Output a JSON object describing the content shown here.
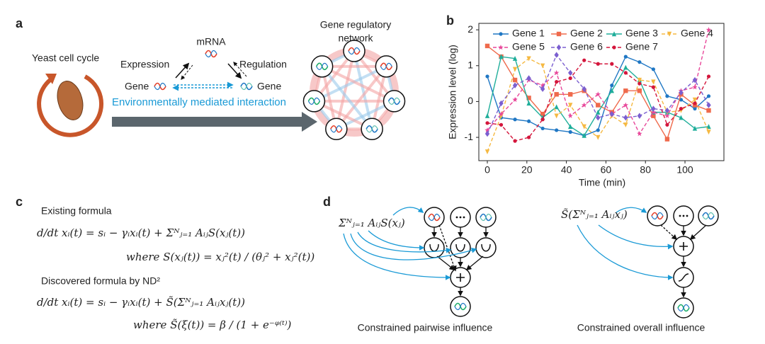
{
  "panel_a": {
    "label": "a",
    "cell_label": "Yeast cell cycle",
    "mrna": "mRNA",
    "expression": "Expression",
    "regulation": "Regulation",
    "gene_left": "Gene",
    "gene_right": "Gene",
    "interaction": "Environmentally mediated interaction",
    "network_title": [
      "Gene regulatory",
      "network"
    ]
  },
  "chart_data": {
    "type": "line",
    "label": "b",
    "xlabel": "Time (min)",
    "ylabel": "Expression level (log)",
    "x": [
      0,
      7,
      14,
      21,
      28,
      35,
      42,
      49,
      56,
      63,
      70,
      77,
      84,
      91,
      98,
      105,
      112
    ],
    "xlim": [
      -4.3,
      119.7
    ],
    "ylim": [
      -1.65,
      2.18
    ],
    "xticks": [
      0,
      20,
      40,
      60,
      80,
      100
    ],
    "yticks": [
      -1,
      0,
      1,
      2
    ],
    "series": [
      {
        "name": "Gene 1",
        "color": "#1f77c4",
        "marker": "circle",
        "dashed": false,
        "values": [
          0.7,
          -0.45,
          -0.5,
          -0.55,
          -0.75,
          -0.8,
          -0.85,
          -0.95,
          -0.8,
          0.45,
          1.25,
          1.1,
          0.9,
          0.15,
          0.05,
          -0.2,
          0.15
        ]
      },
      {
        "name": "Gene 2",
        "color": "#ef6a4c",
        "marker": "square",
        "dashed": false,
        "values": [
          1.55,
          1.25,
          0.6,
          0.1,
          -0.35,
          0.2,
          0.2,
          0.3,
          -0.1,
          -0.3,
          0.3,
          0.3,
          -0.4,
          -1.05,
          0.2,
          -0.1,
          -0.25
        ]
      },
      {
        "name": "Gene 3",
        "color": "#1fae9a",
        "marker": "triangle",
        "dashed": false,
        "values": [
          -0.4,
          1.25,
          1.2,
          -0.05,
          -0.45,
          -0.15,
          -0.7,
          -0.95,
          -0.3,
          0.3,
          0.95,
          0.6,
          -0.3,
          -0.3,
          -0.45,
          -0.75,
          -0.7
        ]
      },
      {
        "name": "Gene 4",
        "color": "#f5b942",
        "marker": "triangle-down",
        "dashed": true,
        "values": [
          -1.4,
          -0.4,
          0.9,
          1.2,
          1.0,
          -0.4,
          -0.1,
          -0.7,
          -1.0,
          -0.4,
          -0.65,
          0.6,
          0.55,
          -0.3,
          -0.25,
          0.05,
          -0.85
        ]
      },
      {
        "name": "Gene 5",
        "color": "#e8479a",
        "marker": "star",
        "dashed": true,
        "values": [
          -0.8,
          -0.35,
          0.05,
          0.6,
          0.45,
          0.8,
          -0.4,
          -0.1,
          0.2,
          -0.35,
          -0.1,
          -0.9,
          -0.3,
          -0.4,
          0.3,
          0.4,
          2.0
        ]
      },
      {
        "name": "Gene 6",
        "color": "#7b5fd0",
        "marker": "diamond",
        "dashed": true,
        "values": [
          -0.9,
          -0.05,
          0.45,
          0.65,
          0.35,
          1.3,
          0.8,
          0.35,
          -0.45,
          -0.35,
          -0.45,
          -0.4,
          -0.2,
          -0.25,
          0.25,
          0.6,
          -0.1
        ]
      },
      {
        "name": "Gene 7",
        "color": "#d4163c",
        "marker": "circle",
        "dashed": true,
        "values": [
          -0.6,
          -0.65,
          -1.1,
          -1.0,
          -0.5,
          0.55,
          0.65,
          1.15,
          1.05,
          1.05,
          0.8,
          0.5,
          0.4,
          -0.65,
          -0.2,
          -0.05,
          0.7
        ]
      }
    ]
  },
  "panel_c": {
    "label": "c",
    "existing_title": "Existing formula",
    "existing_eq": "d/dt xᵢ(t) = sᵢ − γᵢxᵢ(t) + Σᴺⱼ₌₁ AᵢⱼS(xⱼ(t))",
    "existing_where": "where S(xⱼ(t)) = xⱼ²(t) / (θⱼ² + xⱼ²(t))",
    "discovered_title": "Discovered formula by ND²",
    "discovered_eq": "d/dt xᵢ(t) = sᵢ − γᵢxᵢ(t) + S̃(Σᴺⱼ₌₁ Aᵢⱼxⱼ(t))",
    "discovered_where": "where S̃(ξ(t)) = β / (1 + e⁻ᵠ⁽ᵗ⁾)"
  },
  "panel_d": {
    "label": "d",
    "left_expr": "Σᴺⱼ₌₁ AᵢⱼS(xⱼ)",
    "left_caption": "Constrained pairwise influence",
    "right_expr": "S̃(Σᴺⱼ₌₁ Aᵢⱼxⱼ)",
    "right_caption": "Constrained overall influence"
  }
}
